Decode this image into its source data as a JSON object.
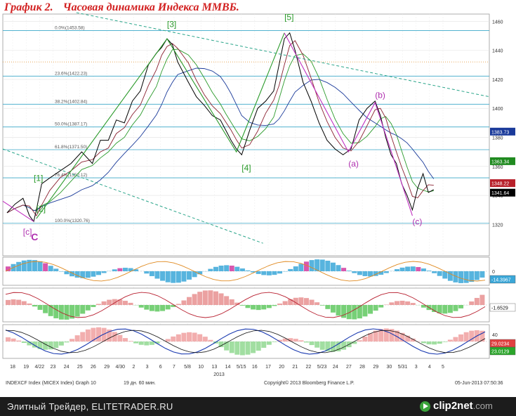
{
  "header": {
    "figure_no": "График 2.",
    "title": "Часовая динамика Индекса ММВБ."
  },
  "status": {
    "ticker": "INDEXCF Index (MICEX Index) Graph 10",
    "period": "19 дн. 60 мин.",
    "copyright": "Copyright© 2013 Bloomberg Finance L.P.",
    "timestamp": "05-Jun-2013 07:50:36"
  },
  "footer": {
    "site": "Элитный Трейдер, ELITETRADER.RU",
    "brand_main": "clip2net",
    "brand_tld": ".com"
  },
  "chart_data": {
    "type": "line",
    "instrument": "MICEX Index, hourly",
    "ylim": [
      1310,
      1465
    ],
    "y_ticks": [
      1320,
      1340,
      1360,
      1380,
      1400,
      1420,
      1440,
      1460
    ],
    "x_tick_labels": [
      "18",
      "19",
      "4/22",
      "23",
      "24",
      "25",
      "26",
      "29",
      "4/30",
      "2",
      "3",
      "6",
      "7",
      "5/8",
      "10",
      "13",
      "14",
      "5/15",
      "16",
      "17",
      "20",
      "21",
      "22",
      "5/23",
      "24",
      "27",
      "28",
      "29",
      "30",
      "5/31",
      "3",
      "4",
      "5"
    ],
    "year_label": "2013",
    "price_tags": [
      {
        "value": "1383.73",
        "color": "#1a3a9a"
      },
      {
        "value": "1363.34",
        "color": "#1f8a1f"
      },
      {
        "value": "1348.22",
        "color": "#b8202a"
      },
      {
        "value": "1341.64",
        "color": "#000000"
      }
    ],
    "fib_levels": [
      {
        "label": "0.0%(1453.58)",
        "value": 1453.58
      },
      {
        "label": "23.6%(1422.23)",
        "value": 1422.23
      },
      {
        "label": "38.2%(1402.84)",
        "value": 1402.84
      },
      {
        "label": "50.0%(1387.17)",
        "value": 1387.17
      },
      {
        "label": "61.8%(1371.50)",
        "value": 1371.5
      },
      {
        "label": "76.4%(1352.12)",
        "value": 1352.12
      },
      {
        "label": "100.0%(1320.76)",
        "value": 1320.76
      }
    ],
    "wave_labels": [
      {
        "text": "[1]",
        "x": 0.5,
        "y": 1350,
        "color": "#2a9a2a"
      },
      {
        "text": "[2]",
        "x": 0.55,
        "y": 1329,
        "color": "#2a9a2a"
      },
      {
        "text": "[3]",
        "x": 3.0,
        "y": 1456,
        "color": "#2a9a2a"
      },
      {
        "text": "[4]",
        "x": 4.4,
        "y": 1357,
        "color": "#2a9a2a"
      },
      {
        "text": "[5]",
        "x": 5.2,
        "y": 1461,
        "color": "#2a9a2a"
      },
      {
        "text": "(a)",
        "x": 6.4,
        "y": 1360,
        "color": "#b030b0"
      },
      {
        "text": "(b)",
        "x": 6.9,
        "y": 1407,
        "color": "#b030b0"
      },
      {
        "text": "(c)",
        "x": 7.6,
        "y": 1320,
        "color": "#b030b0"
      },
      {
        "text": "[c]",
        "x": 0.3,
        "y": 1313,
        "color": "#b030b0"
      },
      {
        "text": "C",
        "x": 0.45,
        "y": 1309,
        "color": "#b030b0"
      }
    ],
    "series": [
      {
        "name": "",
        "color": "#000000",
        "x": [
          0,
          0.15,
          0.3,
          0.42,
          0.5,
          0.55,
          0.65,
          0.8,
          1.0,
          1.2,
          1.4,
          1.6,
          1.75,
          1.9,
          2.05,
          2.2,
          2.35,
          2.5,
          2.65,
          2.8,
          2.9,
          3.0,
          3.1,
          3.2,
          3.4,
          3.55,
          3.7,
          3.85,
          4.0,
          4.1,
          4.2,
          4.3,
          4.4,
          4.55,
          4.7,
          4.85,
          5.0,
          5.1,
          5.2,
          5.3,
          5.4,
          5.55,
          5.7,
          5.85,
          6.0,
          6.15,
          6.3,
          6.45,
          6.6,
          6.75,
          6.9,
          7.0,
          7.1,
          7.2,
          7.3,
          7.4,
          7.5,
          7.6,
          7.7,
          7.8,
          7.9,
          8.0
        ],
        "values": [
          1328,
          1334,
          1338,
          1326,
          1322,
          1330,
          1348,
          1352,
          1357,
          1362,
          1370,
          1362,
          1378,
          1378,
          1392,
          1390,
          1405,
          1412,
          1430,
          1438,
          1442,
          1448,
          1444,
          1432,
          1418,
          1408,
          1402,
          1395,
          1392,
          1385,
          1378,
          1372,
          1368,
          1385,
          1400,
          1405,
          1412,
          1430,
          1448,
          1452,
          1440,
          1418,
          1405,
          1390,
          1378,
          1372,
          1368,
          1372,
          1392,
          1400,
          1405,
          1395,
          1380,
          1368,
          1362,
          1348,
          1340,
          1330,
          1345,
          1355,
          1342,
          1344
        ]
      }
    ],
    "overlays": [
      {
        "name": "",
        "color": "#2a9a2a",
        "style": "solid"
      },
      {
        "name": "",
        "color": "#1a3a9a",
        "style": "solid"
      },
      {
        "name": "",
        "color": "#8a2030",
        "style": "solid"
      },
      {
        "name": "",
        "color": "#2aa58a",
        "style": "dashed"
      }
    ],
    "panels": [
      {
        "last_value": "-14.3967",
        "zero_label": "0"
      },
      {
        "last_value": "-1.6529"
      },
      {
        "last_value_1": "29.0234",
        "last_value_2": "23.0129",
        "top_label": "40"
      }
    ],
    "grid": true
  }
}
